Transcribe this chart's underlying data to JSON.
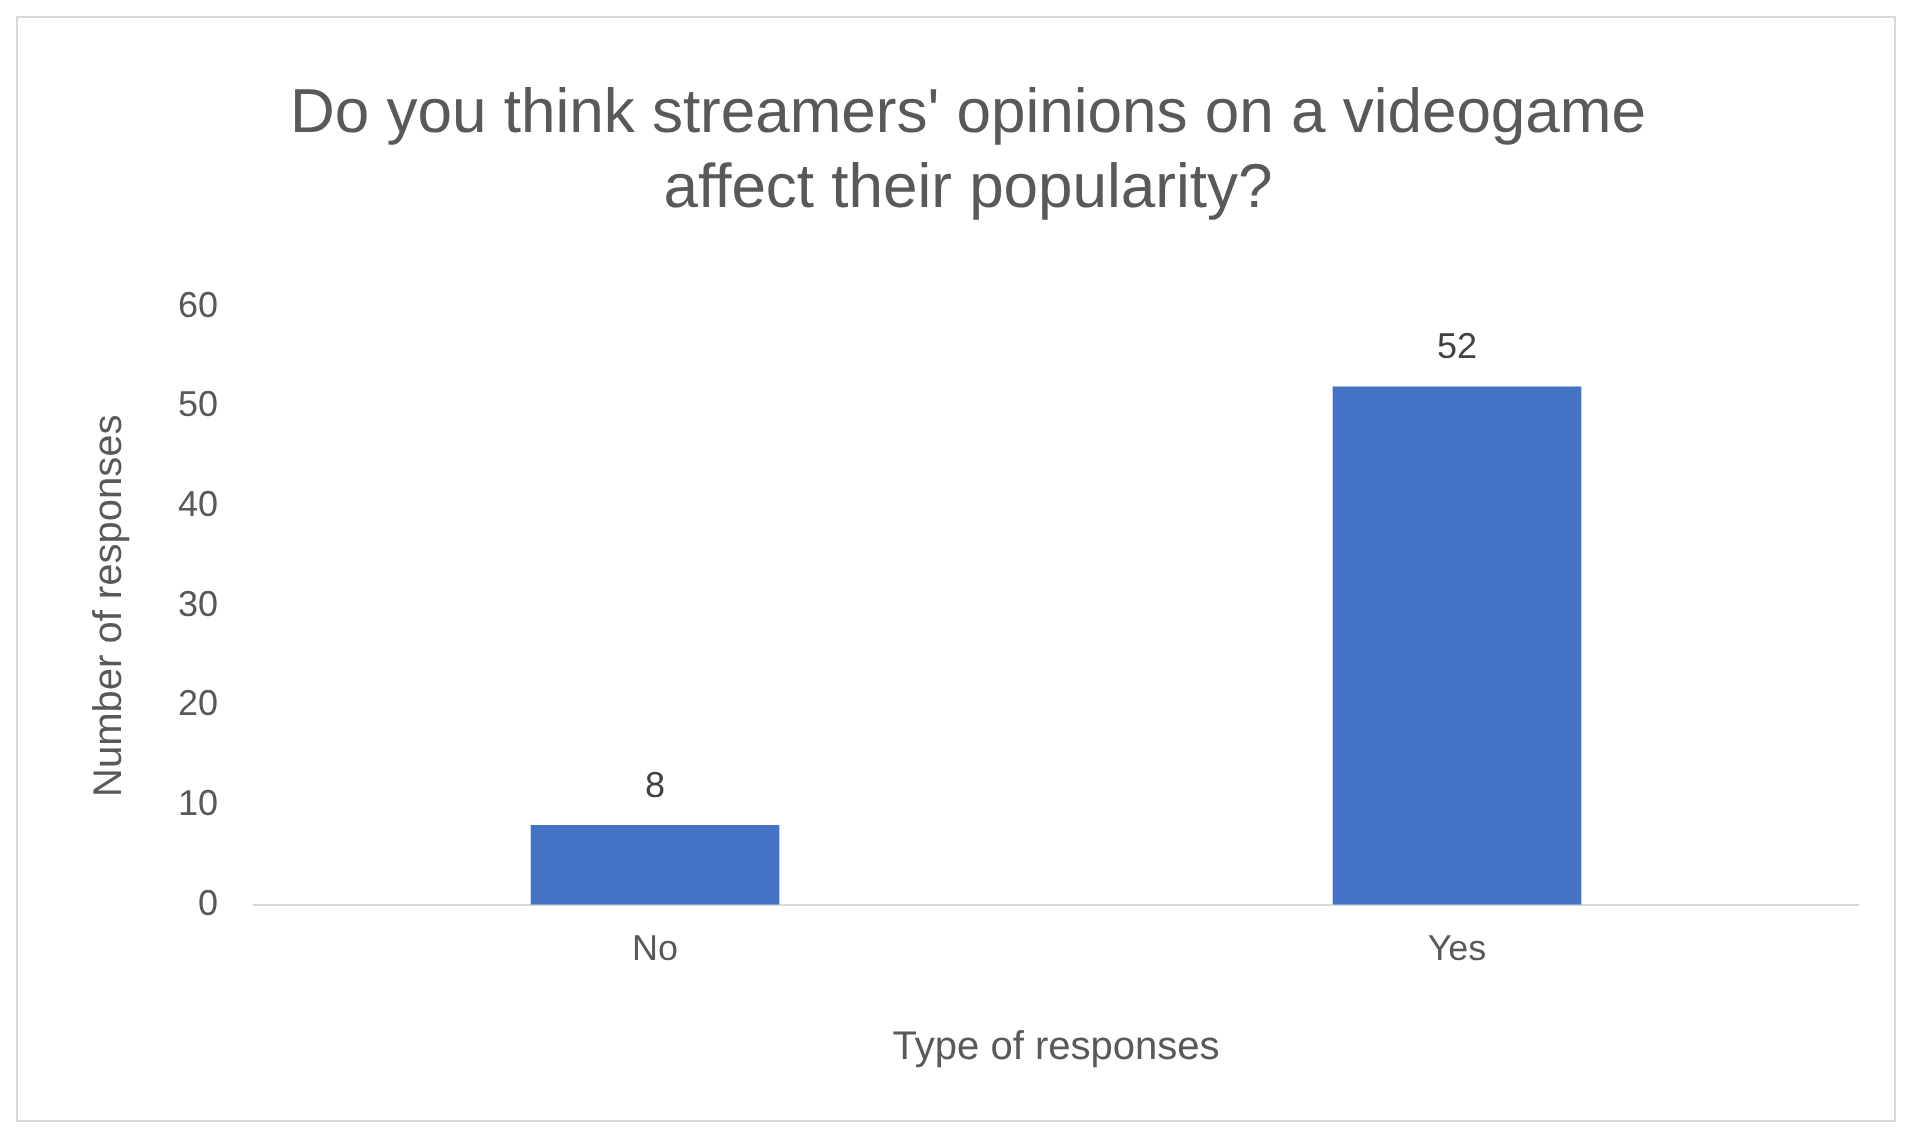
{
  "chart_data": {
    "type": "bar",
    "title": "Do you think streamers' opinions on a videogame affect their popularity?",
    "xlabel": "Type of responses",
    "ylabel": "Number of responses",
    "categories": [
      "No",
      "Yes"
    ],
    "values": [
      8,
      52
    ],
    "color": "#4472c4",
    "ylim": [
      0,
      60
    ],
    "yticks": [
      0,
      10,
      20,
      30,
      40,
      50,
      60
    ],
    "data_labels": true,
    "grid": false,
    "legend": false
  }
}
